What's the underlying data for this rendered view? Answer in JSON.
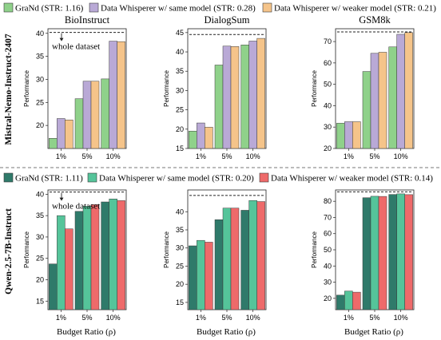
{
  "colors": {
    "grand_top": "#8fd18a",
    "dw_same_top": "#b9a9d6",
    "dw_weak_top": "#f5c48a",
    "grand_bottom": "#2f7a6a",
    "dw_same_bottom": "#55c49a",
    "dw_weak_bottom": "#ee6a6a",
    "edge": "#3a3a3a",
    "divider": "#777777"
  },
  "rows": [
    {
      "row_label": "Mistral-Nemo-Instruct-2407",
      "legend": [
        "GraNd (STR: 1.16)",
        "Data Whisperer w/ same model (STR: 0.28)",
        "Data Whisperer w/ weaker model (STR: 0.21)"
      ]
    },
    {
      "row_label": "Qwen-2.5-7B-Instruct",
      "legend": [
        "GraNd (STR: 1.11)",
        "Data Whisperer w/ same model (STR: 0.20)",
        "Data Whisperer w/ weaker model (STR: 0.14)"
      ]
    }
  ],
  "xlabel": "Budget Ratio (ρ)",
  "chart_data": [
    {
      "type": "bar",
      "title": "BioInstruct",
      "ylabel": "Performance",
      "categories": [
        "1%",
        "5%",
        "10%"
      ],
      "ylim": [
        15,
        41
      ],
      "yticks": [
        20,
        25,
        30,
        35,
        40
      ],
      "full_dataset_value": 40.2,
      "annotation": "whole dataset",
      "series": [
        {
          "name": "GraNd (STR: 1.16)",
          "values": [
            17.2,
            25.8,
            30.1
          ]
        },
        {
          "name": "Data Whisperer w/ same model (STR: 0.28)",
          "values": [
            21.5,
            29.6,
            38.3
          ]
        },
        {
          "name": "Data Whisperer w/ weaker model (STR: 0.21)",
          "values": [
            21.2,
            29.6,
            38.2
          ]
        }
      ]
    },
    {
      "type": "bar",
      "title": "DialogSum",
      "ylabel": "Performance",
      "categories": [
        "1%",
        "5%",
        "10%"
      ],
      "ylim": [
        15,
        46
      ],
      "yticks": [
        15,
        20,
        25,
        30,
        35,
        40,
        45
      ],
      "full_dataset_value": 44.5,
      "series": [
        {
          "name": "GraNd (STR: 1.16)",
          "values": [
            19.5,
            36.6,
            41.8
          ]
        },
        {
          "name": "Data Whisperer w/ same model (STR: 0.28)",
          "values": [
            21.6,
            41.5,
            42.8
          ]
        },
        {
          "name": "Data Whisperer w/ weaker model (STR: 0.21)",
          "values": [
            20.5,
            41.4,
            43.5
          ]
        }
      ]
    },
    {
      "type": "bar",
      "title": "GSM8k",
      "ylabel": "Performance",
      "categories": [
        "1%",
        "5%",
        "10%"
      ],
      "ylim": [
        20,
        76
      ],
      "yticks": [
        20,
        30,
        40,
        50,
        60,
        70
      ],
      "full_dataset_value": 74.5,
      "series": [
        {
          "name": "GraNd (STR: 1.16)",
          "values": [
            31.8,
            56.0,
            67.5
          ]
        },
        {
          "name": "Data Whisperer w/ same model (STR: 0.28)",
          "values": [
            32.5,
            64.5,
            73.4
          ]
        },
        {
          "name": "Data Whisperer w/ weaker model (STR: 0.21)",
          "values": [
            32.5,
            65.0,
            74.2
          ]
        }
      ]
    },
    {
      "type": "bar",
      "title": "",
      "ylabel": "Performance",
      "categories": [
        "1%",
        "5%",
        "10%"
      ],
      "ylim": [
        13,
        41
      ],
      "yticks": [
        15,
        20,
        25,
        30,
        35,
        40
      ],
      "full_dataset_value": 40.5,
      "annotation": "whole dataset",
      "series": [
        {
          "name": "GraNd (STR: 1.11)",
          "values": [
            23.7,
            36.0,
            38.2
          ]
        },
        {
          "name": "Data Whisperer w/ same model (STR: 0.20)",
          "values": [
            35.0,
            37.2,
            38.9
          ]
        },
        {
          "name": "Data Whisperer w/ weaker model (STR: 0.14)",
          "values": [
            31.9,
            37.6,
            38.5
          ]
        }
      ]
    },
    {
      "type": "bar",
      "title": "",
      "ylabel": "Performance",
      "categories": [
        "1%",
        "5%",
        "10%"
      ],
      "ylim": [
        13,
        46
      ],
      "yticks": [
        15,
        20,
        25,
        30,
        35,
        40
      ],
      "full_dataset_value": 44.5,
      "series": [
        {
          "name": "GraNd (STR: 1.11)",
          "values": [
            30.6,
            37.8,
            40.4
          ]
        },
        {
          "name": "Data Whisperer w/ same model (STR: 0.20)",
          "values": [
            32.1,
            41.0,
            43.1
          ]
        },
        {
          "name": "Data Whisperer w/ weaker model (STR: 0.14)",
          "values": [
            31.6,
            41.0,
            42.8
          ]
        }
      ]
    },
    {
      "type": "bar",
      "title": "",
      "ylabel": "Performance",
      "categories": [
        "1%",
        "5%",
        "10%"
      ],
      "ylim": [
        13,
        87
      ],
      "yticks": [
        20,
        30,
        40,
        50,
        60,
        70,
        80
      ],
      "full_dataset_value": 85.8,
      "series": [
        {
          "name": "GraNd (STR: 1.11)",
          "values": [
            22.0,
            82.2,
            84.2
          ]
        },
        {
          "name": "Data Whisperer w/ same model (STR: 0.20)",
          "values": [
            24.5,
            83.1,
            84.6
          ]
        },
        {
          "name": "Data Whisperer w/ weaker model (STR: 0.14)",
          "values": [
            23.8,
            83.0,
            84.1
          ]
        }
      ]
    }
  ]
}
